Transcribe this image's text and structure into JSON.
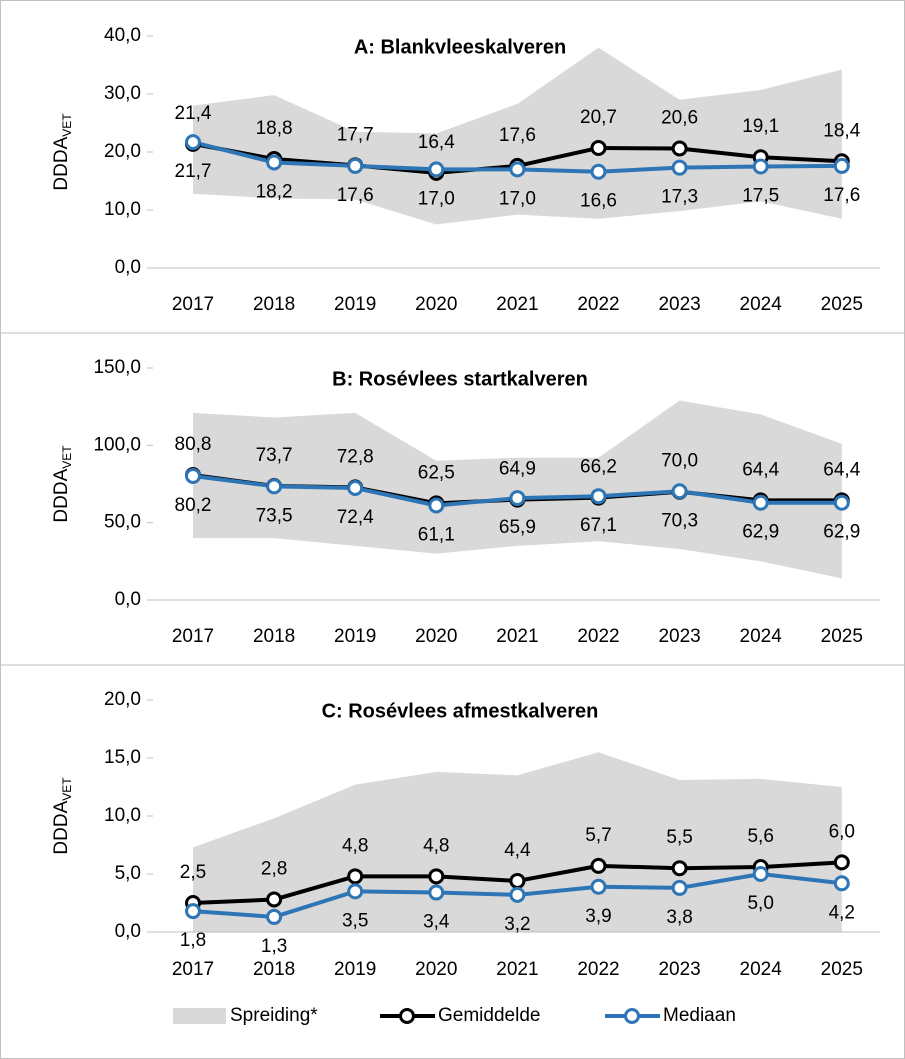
{
  "chart_data": [
    {
      "type": "line",
      "title": "A: Blankvleeskalveren",
      "ylabel": "DDDA",
      "ylabel_sub": "VET",
      "categories": [
        "2017",
        "2018",
        "2019",
        "2020",
        "2021",
        "2022",
        "2023",
        "2024",
        "2025"
      ],
      "ylim": [
        0,
        40
      ],
      "yticks": [
        {
          "value": 0,
          "label": "0,0"
        },
        {
          "value": 10,
          "label": "10,0"
        },
        {
          "value": 20,
          "label": "20,0"
        },
        {
          "value": 30,
          "label": "30,0"
        },
        {
          "value": 40,
          "label": "40,0"
        }
      ],
      "band": {
        "upper": [
          28,
          29.8,
          23.5,
          23.2,
          28.3,
          38,
          29,
          30.7,
          34.2
        ],
        "lower": [
          12.8,
          12,
          11.8,
          7.5,
          9.2,
          8.5,
          9.8,
          11.5,
          8.5
        ]
      },
      "series": [
        {
          "values": [
            21.4,
            18.8,
            17.7,
            16.4,
            17.6,
            20.7,
            20.6,
            19.1,
            18.4
          ],
          "value_labels": [
            "21,4",
            "18,8",
            "17,7",
            "16,4",
            "17,6",
            "20,7",
            "20,6",
            "19,1",
            "18,4"
          ]
        },
        {
          "values": [
            21.7,
            18.2,
            17.6,
            17.0,
            17.0,
            16.6,
            17.3,
            17.5,
            17.6
          ],
          "value_labels": [
            "21,7",
            "18,2",
            "17,6",
            "17,0",
            "17,0",
            "16,6",
            "17,3",
            "17,5",
            "17,6"
          ]
        }
      ]
    },
    {
      "type": "line",
      "title": "B: Rosévlees startkalveren",
      "ylabel": "DDDA",
      "ylabel_sub": "VET",
      "categories": [
        "2017",
        "2018",
        "2019",
        "2020",
        "2021",
        "2022",
        "2023",
        "2024",
        "2025"
      ],
      "ylim": [
        0,
        150
      ],
      "yticks": [
        {
          "value": 0,
          "label": "0,0"
        },
        {
          "value": 50,
          "label": "50,0"
        },
        {
          "value": 100,
          "label": "100,0"
        },
        {
          "value": 150,
          "label": "150,0"
        }
      ],
      "band": {
        "upper": [
          121,
          118,
          121,
          90,
          92,
          92,
          129,
          120,
          101
        ],
        "lower": [
          40,
          40,
          35,
          30,
          35,
          38,
          33,
          25,
          14
        ]
      },
      "series": [
        {
          "values": [
            80.8,
            73.7,
            72.8,
            62.5,
            64.9,
            66.2,
            70.0,
            64.4,
            64.4
          ],
          "value_labels": [
            "80,8",
            "73,7",
            "72,8",
            "62,5",
            "64,9",
            "66,2",
            "70,0",
            "64,4",
            "64,4"
          ]
        },
        {
          "values": [
            80.2,
            73.5,
            72.4,
            61.1,
            65.9,
            67.1,
            70.3,
            62.9,
            62.9
          ],
          "value_labels": [
            "80,2",
            "73,5",
            "72,4",
            "61,1",
            "65,9",
            "67,1",
            "70,3",
            "62,9",
            "62,9"
          ]
        }
      ]
    },
    {
      "type": "line",
      "title": "C: Rosévlees afmestkalveren",
      "ylabel": "DDDA",
      "ylabel_sub": "VET",
      "categories": [
        "2017",
        "2018",
        "2019",
        "2020",
        "2021",
        "2022",
        "2023",
        "2024",
        "2025"
      ],
      "ylim": [
        0,
        20
      ],
      "yticks": [
        {
          "value": 0,
          "label": "0,0"
        },
        {
          "value": 5,
          "label": "5,0"
        },
        {
          "value": 10,
          "label": "10,0"
        },
        {
          "value": 15,
          "label": "15,0"
        },
        {
          "value": 20,
          "label": "20,0"
        }
      ],
      "band": {
        "upper": [
          7.3,
          9.8,
          12.7,
          13.8,
          13.5,
          15.5,
          13.1,
          13.2,
          12.5
        ],
        "lower": [
          0,
          0,
          0,
          0,
          0,
          0,
          0,
          0,
          0
        ]
      },
      "series": [
        {
          "values": [
            2.5,
            2.8,
            4.8,
            4.8,
            4.4,
            5.7,
            5.5,
            5.6,
            6.0
          ],
          "value_labels": [
            "2,5",
            "2,8",
            "4,8",
            "4,8",
            "4,4",
            "5,7",
            "5,5",
            "5,6",
            "6,0"
          ]
        },
        {
          "values": [
            1.8,
            1.3,
            3.5,
            3.4,
            3.2,
            3.9,
            3.8,
            5.0,
            4.2
          ],
          "value_labels": [
            "1,8",
            "1,3",
            "3,5",
            "3,4",
            "3,2",
            "3,9",
            "3,8",
            "5,0",
            "4,2"
          ]
        }
      ]
    }
  ],
  "legend": [
    {
      "name": "Spreiding*",
      "color": "#d9d9d9"
    },
    {
      "name": "Gemiddelde",
      "color": "#000000"
    },
    {
      "name": "Mediaan",
      "color": "#2e75b6"
    }
  ]
}
